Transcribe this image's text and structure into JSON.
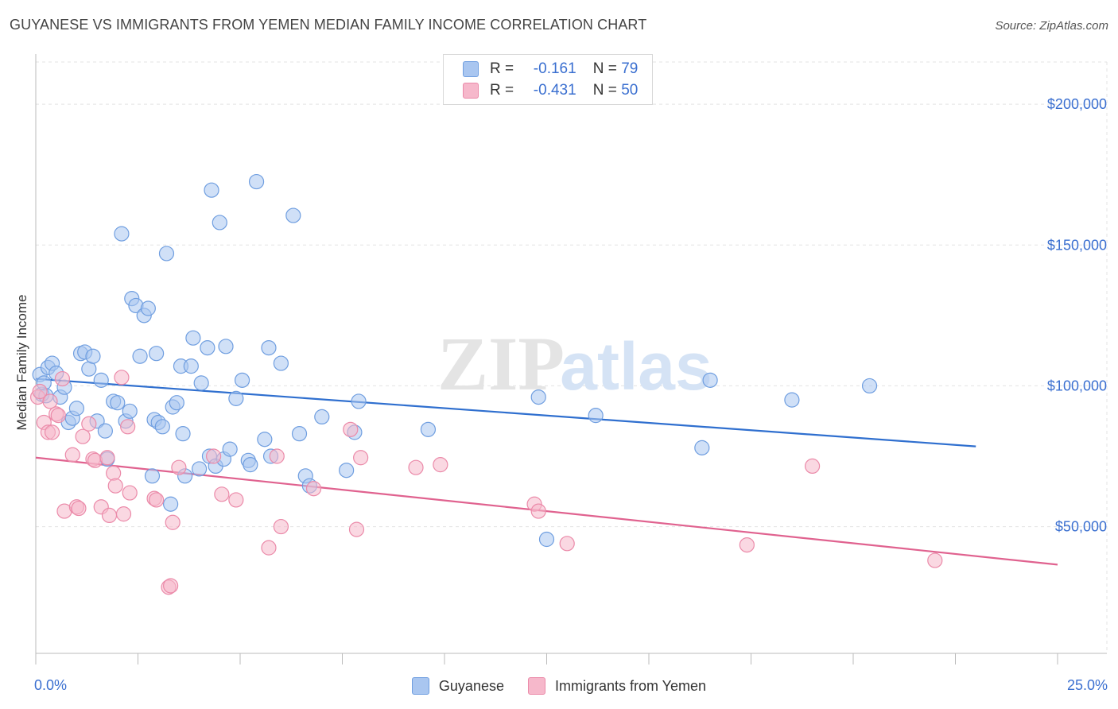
{
  "title": "GUYANESE VS IMMIGRANTS FROM YEMEN MEDIAN FAMILY INCOME CORRELATION CHART",
  "source": "Source: ZipAtlas.com",
  "watermark": {
    "zip": "ZIP",
    "atlas": "atlas"
  },
  "legend": {
    "rows": [
      {
        "r_label": "R =",
        "r_value": "-0.161",
        "n_label": "N =",
        "n_value": "79"
      },
      {
        "r_label": "R =",
        "r_value": "-0.431",
        "n_label": "N =",
        "n_value": "50"
      }
    ]
  },
  "colors": {
    "blue_fill": "#a9c6f0",
    "blue_stroke": "#6f9ee0",
    "blue_line": "#2f6fcf",
    "pink_fill": "#f6b8cb",
    "pink_stroke": "#eb8aa9",
    "pink_line": "#e0628f",
    "tick_label": "#3a6fd0"
  },
  "chart_data": {
    "type": "scatter",
    "title": "GUYANESE VS IMMIGRANTS FROM YEMEN MEDIAN FAMILY INCOME CORRELATION CHART",
    "xlabel": "",
    "ylabel": "Median Family Income",
    "xlim": [
      0,
      25
    ],
    "ylim": [
      5000,
      215000
    ],
    "x_tick_labels": [
      "0.0%",
      "25.0%"
    ],
    "y_ticks": [
      50000,
      100000,
      150000,
      200000
    ],
    "y_tick_labels": [
      "$50,000",
      "$100,000",
      "$150,000",
      "$200,000"
    ],
    "grid": true,
    "legend_position": "top-center",
    "series": [
      {
        "name": "Guyanese",
        "color": "#a9c6f0",
        "trend": {
          "x": [
            0,
            23
          ],
          "y": [
            102500,
            78500
          ]
        },
        "points": [
          [
            0.1,
            104000
          ],
          [
            0.15,
            97000
          ],
          [
            0.2,
            101000
          ],
          [
            0.25,
            96500
          ],
          [
            0.3,
            106500
          ],
          [
            0.4,
            108000
          ],
          [
            0.5,
            104500
          ],
          [
            0.6,
            96000
          ],
          [
            0.7,
            99500
          ],
          [
            0.8,
            87000
          ],
          [
            0.9,
            88500
          ],
          [
            1.0,
            92000
          ],
          [
            1.1,
            111500
          ],
          [
            1.2,
            112000
          ],
          [
            1.3,
            106000
          ],
          [
            1.4,
            110500
          ],
          [
            1.5,
            87500
          ],
          [
            1.6,
            102000
          ],
          [
            1.7,
            84000
          ],
          [
            1.75,
            74000
          ],
          [
            1.9,
            94500
          ],
          [
            2.0,
            94000
          ],
          [
            2.1,
            154000
          ],
          [
            2.2,
            87500
          ],
          [
            2.3,
            91000
          ],
          [
            2.35,
            131000
          ],
          [
            2.45,
            128500
          ],
          [
            2.55,
            110500
          ],
          [
            2.65,
            125000
          ],
          [
            2.75,
            127500
          ],
          [
            2.85,
            68000
          ],
          [
            2.9,
            88000
          ],
          [
            2.95,
            111500
          ],
          [
            3.0,
            87000
          ],
          [
            3.1,
            85500
          ],
          [
            3.2,
            147000
          ],
          [
            3.3,
            58000
          ],
          [
            3.35,
            92500
          ],
          [
            3.45,
            94000
          ],
          [
            3.55,
            107000
          ],
          [
            3.6,
            83000
          ],
          [
            3.65,
            68000
          ],
          [
            3.8,
            107000
          ],
          [
            3.85,
            117000
          ],
          [
            4.0,
            70500
          ],
          [
            4.05,
            101000
          ],
          [
            4.2,
            113500
          ],
          [
            4.25,
            75000
          ],
          [
            4.3,
            169500
          ],
          [
            4.4,
            71500
          ],
          [
            4.5,
            158000
          ],
          [
            4.6,
            74000
          ],
          [
            4.65,
            114000
          ],
          [
            4.75,
            77500
          ],
          [
            4.9,
            95500
          ],
          [
            5.05,
            102000
          ],
          [
            5.2,
            73500
          ],
          [
            5.25,
            72000
          ],
          [
            5.4,
            172500
          ],
          [
            5.6,
            81000
          ],
          [
            5.7,
            113500
          ],
          [
            5.75,
            75000
          ],
          [
            6.0,
            108000
          ],
          [
            6.3,
            160500
          ],
          [
            6.45,
            83000
          ],
          [
            6.6,
            68000
          ],
          [
            6.7,
            64500
          ],
          [
            7.0,
            89000
          ],
          [
            7.6,
            70000
          ],
          [
            7.8,
            83500
          ],
          [
            7.9,
            94500
          ],
          [
            9.6,
            84500
          ],
          [
            12.3,
            96000
          ],
          [
            12.5,
            45500
          ],
          [
            13.7,
            89500
          ],
          [
            16.3,
            78000
          ],
          [
            16.5,
            102000
          ],
          [
            18.5,
            95000
          ],
          [
            20.4,
            100000
          ]
        ]
      },
      {
        "name": "Immigrants from Yemen",
        "color": "#f6b8cb",
        "trend": {
          "x": [
            0,
            25
          ],
          "y": [
            74500,
            36500
          ]
        },
        "points": [
          [
            0.05,
            96000
          ],
          [
            0.1,
            98000
          ],
          [
            0.2,
            87000
          ],
          [
            0.3,
            83500
          ],
          [
            0.35,
            94500
          ],
          [
            0.4,
            83500
          ],
          [
            0.5,
            90000
          ],
          [
            0.55,
            89500
          ],
          [
            0.65,
            102500
          ],
          [
            0.7,
            55500
          ],
          [
            0.9,
            75500
          ],
          [
            1.0,
            57000
          ],
          [
            1.05,
            56500
          ],
          [
            1.15,
            82000
          ],
          [
            1.3,
            86500
          ],
          [
            1.4,
            74000
          ],
          [
            1.45,
            73500
          ],
          [
            1.6,
            57000
          ],
          [
            1.75,
            74500
          ],
          [
            1.8,
            54000
          ],
          [
            1.9,
            69000
          ],
          [
            1.95,
            64500
          ],
          [
            2.1,
            103000
          ],
          [
            2.15,
            54500
          ],
          [
            2.25,
            85500
          ],
          [
            2.3,
            62000
          ],
          [
            2.9,
            60000
          ],
          [
            2.95,
            59500
          ],
          [
            3.25,
            28500
          ],
          [
            3.3,
            29000
          ],
          [
            3.35,
            51500
          ],
          [
            3.5,
            71000
          ],
          [
            4.35,
            75000
          ],
          [
            4.55,
            61500
          ],
          [
            4.9,
            59500
          ],
          [
            5.7,
            42500
          ],
          [
            5.9,
            75000
          ],
          [
            6.0,
            50000
          ],
          [
            6.8,
            63500
          ],
          [
            7.7,
            84500
          ],
          [
            7.85,
            49000
          ],
          [
            7.95,
            74500
          ],
          [
            9.3,
            71000
          ],
          [
            9.9,
            72000
          ],
          [
            12.2,
            58000
          ],
          [
            12.3,
            55500
          ],
          [
            13.0,
            44000
          ],
          [
            17.4,
            43500
          ],
          [
            19.0,
            71500
          ],
          [
            22.0,
            38000
          ]
        ]
      }
    ]
  },
  "x_axis": {
    "min_label": "0.0%",
    "max_label": "25.0%"
  },
  "y_axis_label": "Median Family Income",
  "bottom_legend": [
    {
      "label": "Guyanese"
    },
    {
      "label": "Immigrants from Yemen"
    }
  ]
}
